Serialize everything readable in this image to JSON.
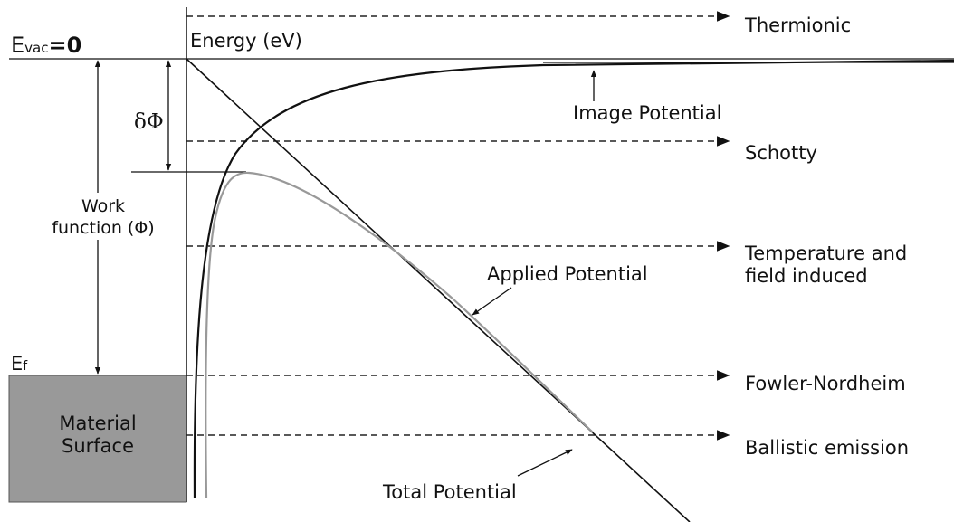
{
  "axis": {
    "label": "Energy (eV)"
  },
  "vacuum_level": {
    "symbol": "E",
    "subscript": "vac",
    "suffix": "=0"
  },
  "fermi_level": {
    "symbol": "E",
    "subscript": "f"
  },
  "material": [
    "Material",
    "Surface"
  ],
  "work_function": [
    "Work",
    "function (Φ)"
  ],
  "barrier_lowering": "δΦ",
  "curves": {
    "image": "Image Potential",
    "applied": "Applied Potential",
    "total": "Total Potential"
  },
  "mechanisms": [
    [
      "Thermionic"
    ],
    [
      "Schotty"
    ],
    [
      "Temperature and",
      "field induced"
    ],
    [
      "Fowler-Nordheim"
    ],
    [
      "Ballistic emission"
    ]
  ]
}
